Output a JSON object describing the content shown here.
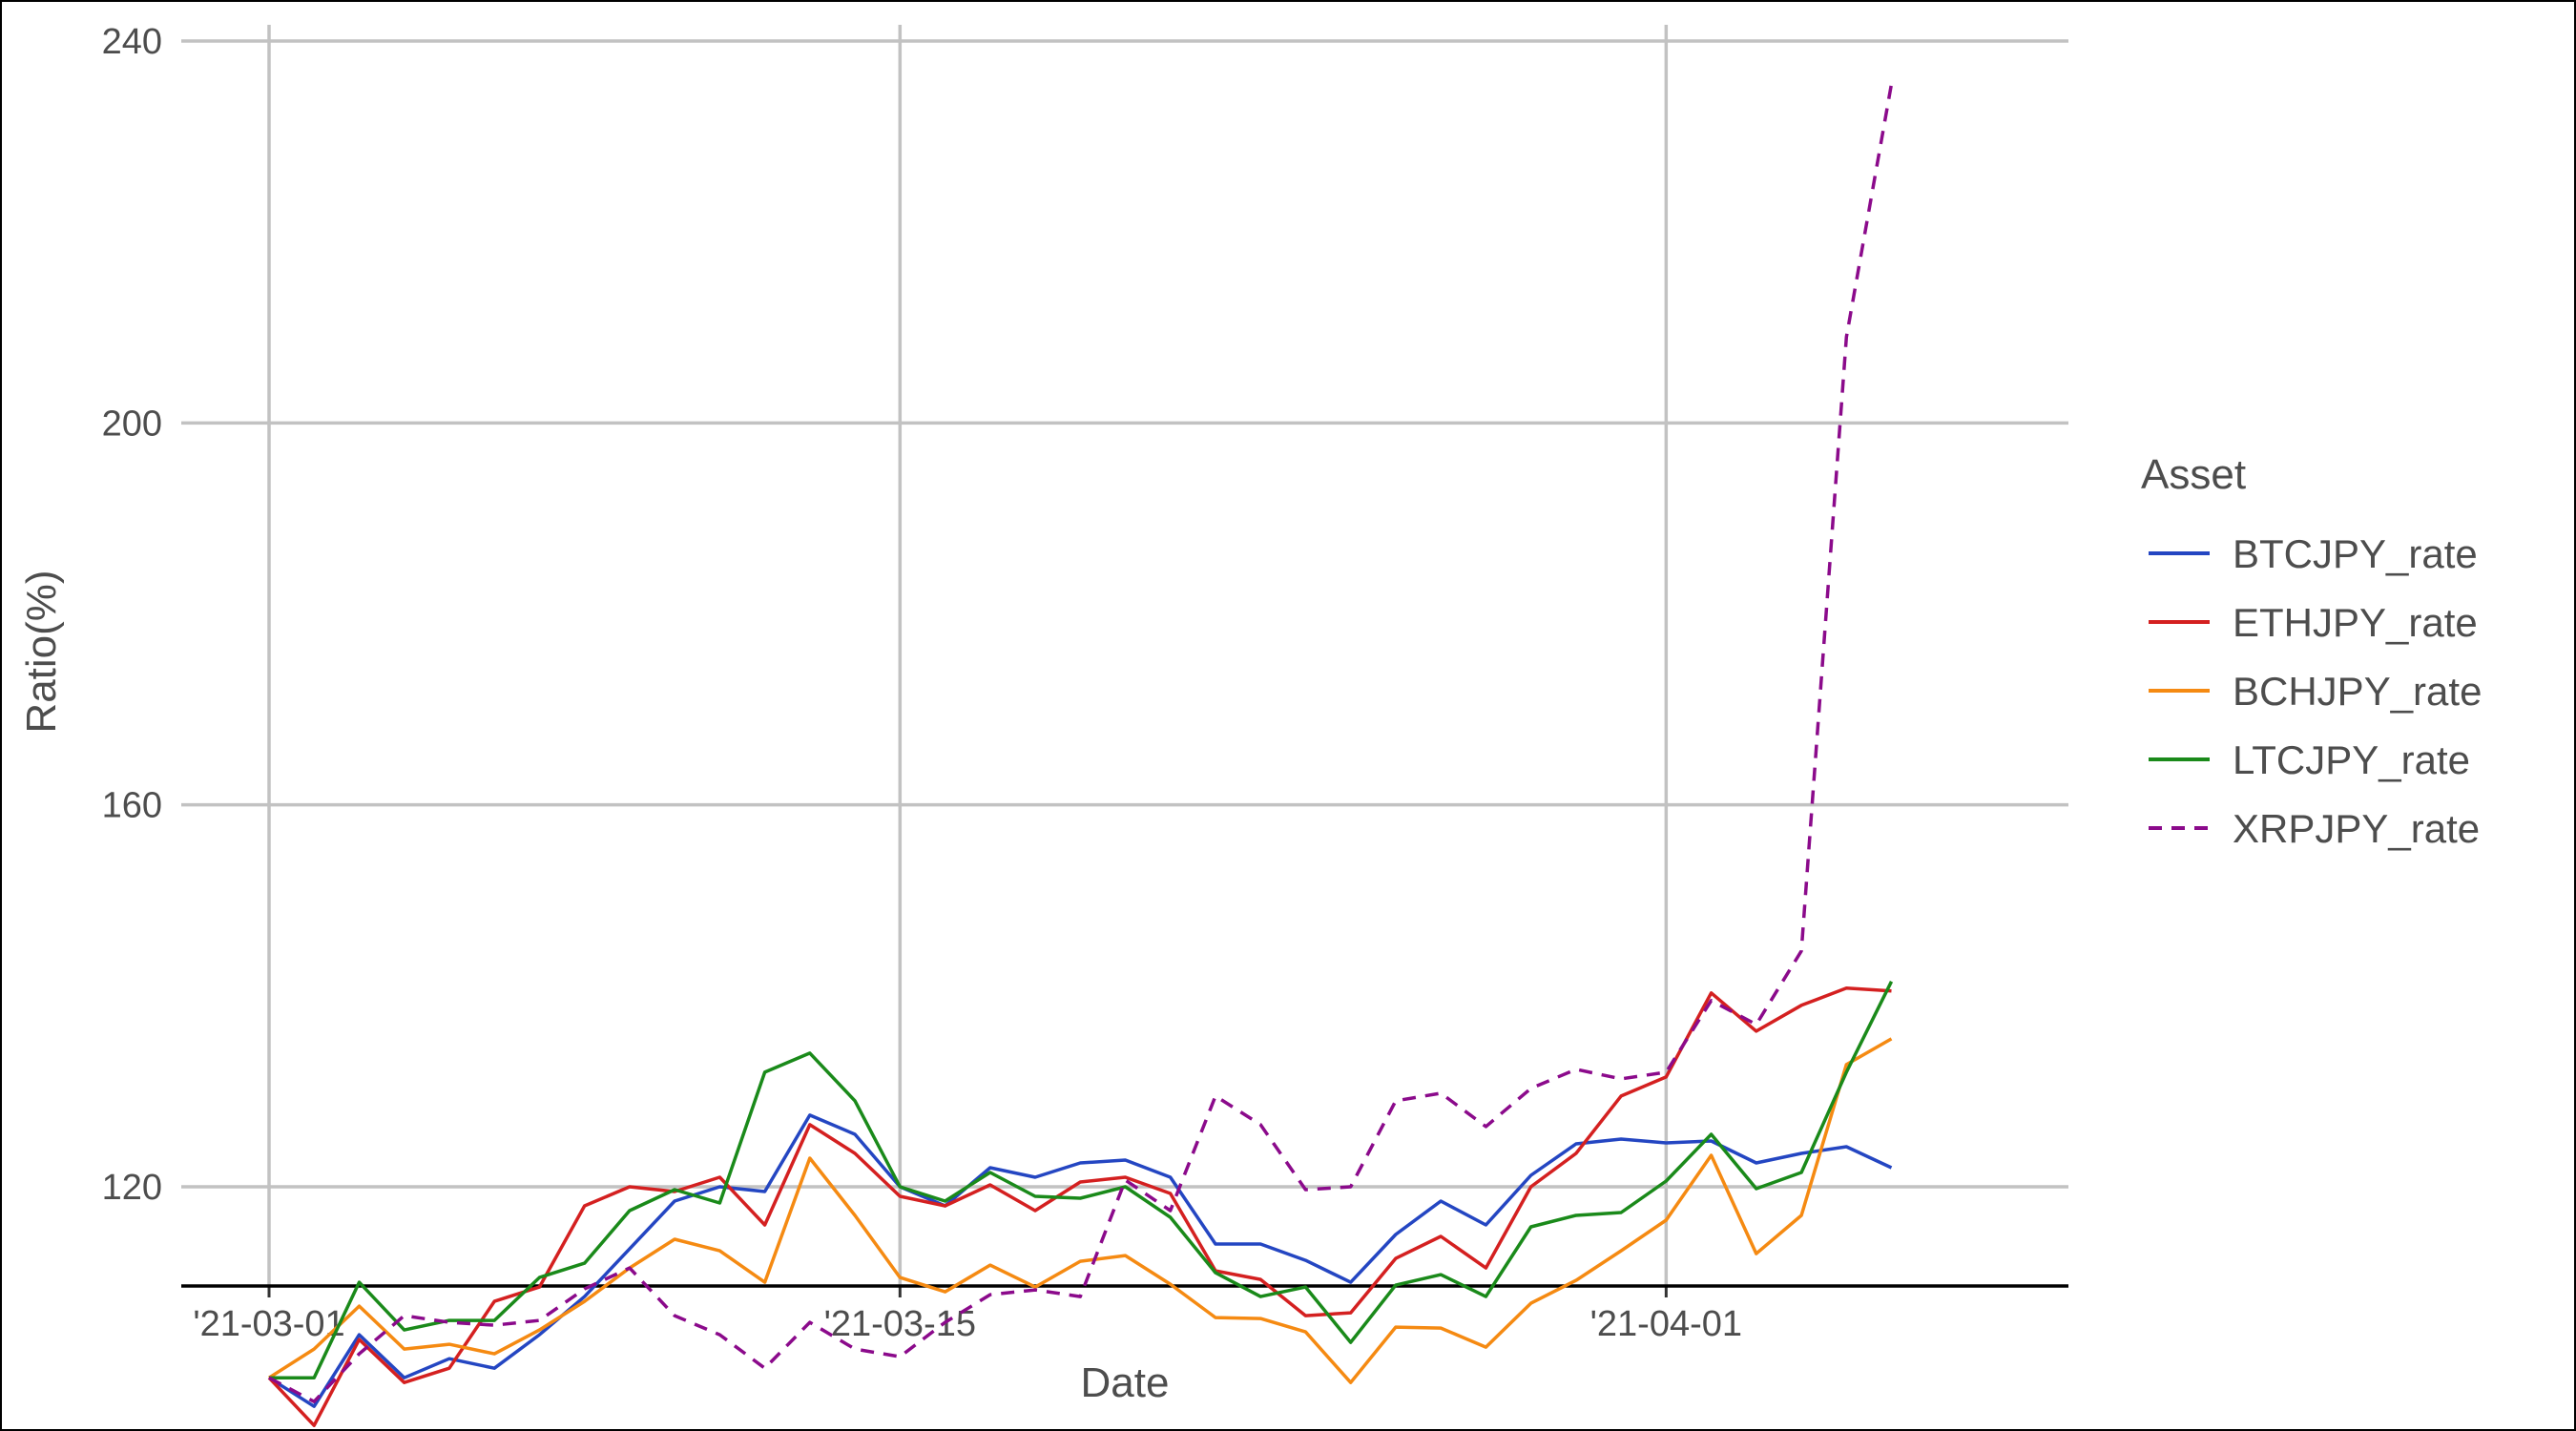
{
  "chart_data": {
    "type": "line",
    "title": "",
    "xlabel": "Date",
    "ylabel": "Ratio(%)",
    "ylim": [
      88,
      242
    ],
    "x_start": "2021-03-01",
    "x_end": "2021-04-08",
    "yticks": [
      120,
      160,
      200,
      240
    ],
    "xticks": [
      {
        "date": "2021-03-01",
        "label": "'21-03-01"
      },
      {
        "date": "2021-03-15",
        "label": "'21-03-15"
      },
      {
        "date": "2021-04-01",
        "label": "'21-04-01"
      }
    ],
    "grid": true,
    "legend": {
      "title": "Asset",
      "position": "right"
    },
    "x": [
      "2021-03-01",
      "2021-03-02",
      "2021-03-03",
      "2021-03-04",
      "2021-03-05",
      "2021-03-06",
      "2021-03-07",
      "2021-03-08",
      "2021-03-09",
      "2021-03-10",
      "2021-03-11",
      "2021-03-12",
      "2021-03-13",
      "2021-03-14",
      "2021-03-15",
      "2021-03-16",
      "2021-03-17",
      "2021-03-18",
      "2021-03-19",
      "2021-03-20",
      "2021-03-21",
      "2021-03-22",
      "2021-03-23",
      "2021-03-24",
      "2021-03-25",
      "2021-03-26",
      "2021-03-27",
      "2021-03-28",
      "2021-03-29",
      "2021-03-30",
      "2021-03-31",
      "2021-04-01",
      "2021-04-02",
      "2021-04-03",
      "2021-04-04",
      "2021-04-05",
      "2021-04-06"
    ],
    "series": [
      {
        "name": "BTCJPY_rate",
        "color": "#2446c2",
        "dash": false,
        "values": [
          100,
          97,
          104.5,
          100,
          102,
          101,
          104.5,
          108.5,
          113.5,
          118.5,
          120,
          119.5,
          127.5,
          125.5,
          120,
          118,
          122,
          121,
          122.5,
          122.8,
          121,
          114,
          114,
          112.3,
          110,
          115,
          118.5,
          116,
          121.2,
          124.5,
          125,
          124.6,
          124.8,
          122.5,
          123.5,
          124.2,
          122
        ]
      },
      {
        "name": "ETHJPY_rate",
        "color": "#d42020",
        "dash": false,
        "values": [
          100,
          95,
          104,
          99.5,
          101,
          108,
          109.5,
          118,
          120,
          119.5,
          121,
          116,
          126.5,
          123.5,
          119,
          118,
          120.2,
          117.5,
          120.5,
          121,
          119.3,
          111.2,
          110.3,
          106.5,
          106.8,
          112.5,
          114.8,
          111.5,
          120,
          123.5,
          129.5,
          131.5,
          140.3,
          136.3,
          139,
          140.8,
          140.5
        ]
      },
      {
        "name": "BCHJPY_rate",
        "color": "#f58a12",
        "dash": false,
        "values": [
          100,
          103,
          107.5,
          103,
          103.5,
          102.5,
          105,
          108,
          111.5,
          114.5,
          113.3,
          110,
          123,
          117,
          110.5,
          109,
          111.8,
          109.5,
          112.2,
          112.8,
          109.8,
          106.3,
          106.2,
          104.8,
          99.5,
          105.3,
          105.2,
          103.2,
          107.8,
          110.2,
          113.3,
          116.5,
          123.3,
          113,
          117,
          132.8,
          135.5
        ]
      },
      {
        "name": "LTCJPY_rate",
        "color": "#1a8a1a",
        "dash": false,
        "values": [
          100,
          100,
          110,
          105,
          106,
          106,
          110.5,
          112,
          117.5,
          119.7,
          118.3,
          132,
          134,
          129,
          120,
          118.5,
          121.5,
          119,
          118.8,
          120,
          116.8,
          111,
          108.5,
          109.5,
          103.7,
          109.7,
          110.8,
          108.5,
          115.8,
          117,
          117.3,
          120.6,
          125.5,
          119.8,
          121.5,
          132,
          141.5
        ]
      },
      {
        "name": "XRPJPY_rate",
        "color": "#8b0a8b",
        "dash": true,
        "values": [
          100,
          97.5,
          102.5,
          106.5,
          105.8,
          105.5,
          106,
          109.3,
          111.5,
          106.5,
          104.5,
          101,
          105.8,
          103,
          102.2,
          105.8,
          108.7,
          109.2,
          108.5,
          120.7,
          117.5,
          129.5,
          126.5,
          119.7,
          120,
          129,
          129.8,
          126.3,
          130.3,
          132.3,
          131.3,
          132,
          139.5,
          137,
          144.7,
          209,
          235.5
        ]
      }
    ]
  }
}
